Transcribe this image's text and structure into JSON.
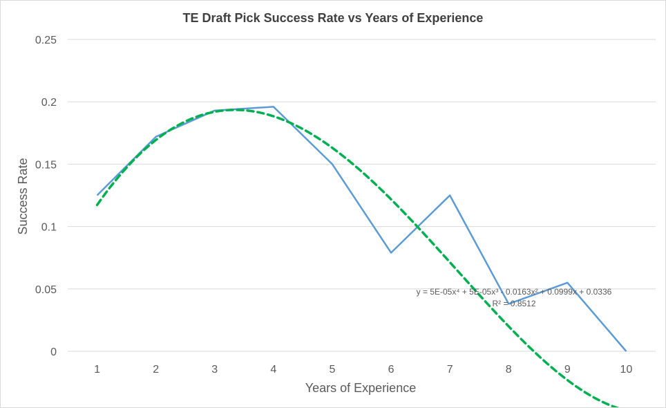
{
  "chart_data": {
    "type": "line",
    "title": "TE Draft Pick Success Rate vs Years of Experience",
    "xlabel": "Years of Experience",
    "ylabel": "Success Rate",
    "categories": [
      "1",
      "2",
      "3",
      "4",
      "5",
      "6",
      "7",
      "8",
      "9",
      "10"
    ],
    "x": [
      1,
      2,
      3,
      4,
      5,
      6,
      7,
      8,
      9,
      10
    ],
    "ylim": [
      0,
      0.25
    ],
    "yticks": [
      0,
      0.05,
      0.1,
      0.15,
      0.2,
      0.25
    ],
    "ytick_labels": [
      "0",
      "0.05",
      "0.1",
      "0.15",
      "0.2",
      "0.25"
    ],
    "grid": true,
    "series": [
      {
        "values": [
          0.125,
          0.172,
          0.193,
          0.196,
          0.15,
          0.079,
          0.125,
          0.038,
          0.055,
          0.0
        ],
        "color": "#5b9bd5",
        "style": "solid"
      }
    ],
    "trendline": {
      "type": "polynomial",
      "order": 4,
      "color": "#00b050",
      "style": "dashed",
      "coefficients": {
        "a4": 5e-05,
        "a3": 5e-05,
        "a2": -0.0163,
        "a1": 0.0999,
        "a0": 0.0336
      },
      "equation": "y = 5E-05x⁴ + 5E-05x³ - 0.0163x² + 0.0999x + 0.0336",
      "r_squared": "R² = 0.8512"
    }
  }
}
